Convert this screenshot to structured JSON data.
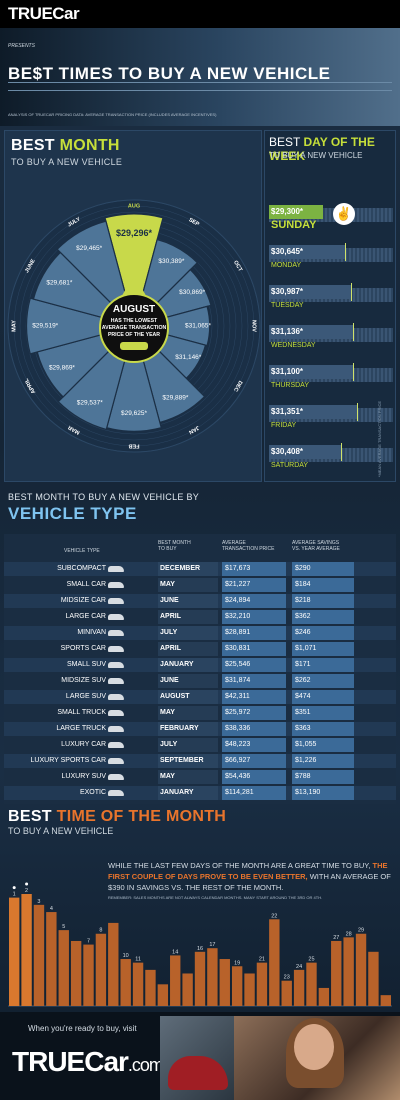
{
  "header": {
    "logo": "TRUECar",
    "presents": "PRESENTS",
    "title": "BE$T TIMES TO BUY A NEW VEHICLE",
    "subtitle": "ANALYSIS OF TRUECAR PRICING DATA: AVERAGE TRANSACTION PRICE (INCLUDES AVERAGE INCENTIVES)"
  },
  "best_month": {
    "title_prefix": "BEST ",
    "title_highlight": "MONTH",
    "subtitle": "TO BUY A NEW VEHICLE",
    "center_month": "AUGUST",
    "center_text_1": "HAS THE LOWEST",
    "center_text_2": "AVERAGE TRANSACTION",
    "center_text_3": "PRICE OF THE YEAR",
    "months": [
      {
        "name": "AUG",
        "price": "$29,296*",
        "value": 29296,
        "best": true
      },
      {
        "name": "SEP",
        "price": "$30,389*",
        "value": 30389
      },
      {
        "name": "OCT",
        "price": "$30,869*",
        "value": 30869
      },
      {
        "name": "NOV",
        "price": "$31,065*",
        "value": 31065
      },
      {
        "name": "DEC",
        "price": "$31,146*",
        "value": 31146
      },
      {
        "name": "JAN",
        "price": "$29,889*",
        "value": 29889
      },
      {
        "name": "FEB",
        "price": "$29,625*",
        "value": 29625
      },
      {
        "name": "MAR",
        "price": "$29,537*",
        "value": 29537
      },
      {
        "name": "APRIL",
        "price": "$29,869*",
        "value": 29869
      },
      {
        "name": "MAY",
        "price": "$29,519*",
        "value": 29519
      },
      {
        "name": "JUNE",
        "price": "$29,681*",
        "value": 29681
      },
      {
        "name": "JULY",
        "price": "$29,465*",
        "value": 29465
      }
    ]
  },
  "best_day": {
    "title_prefix": "BEST ",
    "title_highlight": "DAY OF THE WEEK",
    "subtitle": "TO BUY A NEW VEHICLE",
    "vertical_note": "*MEAN AVERAGE TRANSACTION PRICE",
    "days": [
      {
        "name": "SUNDAY",
        "price": "$29,300*",
        "value": 29300,
        "best": true
      },
      {
        "name": "MONDAY",
        "price": "$30,645*",
        "value": 30645
      },
      {
        "name": "TUESDAY",
        "price": "$30,987*",
        "value": 30987
      },
      {
        "name": "WEDNESDAY",
        "price": "$31,136*",
        "value": 31136
      },
      {
        "name": "THURSDAY",
        "price": "$31,100*",
        "value": 31100
      },
      {
        "name": "FRIDAY",
        "price": "$31,351*",
        "value": 31351
      },
      {
        "name": "SATURDAY",
        "price": "$30,408*",
        "value": 30408
      }
    ]
  },
  "vehicle_type": {
    "heading_1": "BEST MONTH TO BUY A NEW VEHICLE BY",
    "heading_2": "VEHICLE TYPE",
    "col_type": "VEHICLE TYPE",
    "col_month_1": "BEST MONTH",
    "col_month_2": "TO BUY",
    "col_price_1": "AVERAGE",
    "col_price_2": "TRANSACTION   PRICE",
    "col_save_1": "AVERAGE SAVINGS",
    "col_save_2": "VS. YEAR AVERAGE",
    "rows": [
      {
        "type": "SUBCOMPACT",
        "month": "DECEMBER",
        "price": "$17,673",
        "savings": "$290"
      },
      {
        "type": "SMALL CAR",
        "month": "MAY",
        "price": "$21,227",
        "savings": "$184"
      },
      {
        "type": "MIDSIZE CAR",
        "month": "JUNE",
        "price": "$24,894",
        "savings": "$218"
      },
      {
        "type": "LARGE CAR",
        "month": "APRIL",
        "price": "$32,210",
        "savings": "$362"
      },
      {
        "type": "MINIVAN",
        "month": "JULY",
        "price": "$28,891",
        "savings": "$246"
      },
      {
        "type": "SPORTS CAR",
        "month": "APRIL",
        "price": "$30,831",
        "savings": "$1,071"
      },
      {
        "type": "SMALL SUV",
        "month": "JANUARY",
        "price": "$25,546",
        "savings": "$171"
      },
      {
        "type": "MIDSIZE SUV",
        "month": "JUNE",
        "price": "$31,874",
        "savings": "$262"
      },
      {
        "type": "LARGE SUV",
        "month": "AUGUST",
        "price": "$42,311",
        "savings": "$474"
      },
      {
        "type": "SMALL TRUCK",
        "month": "MAY",
        "price": "$25,972",
        "savings": "$351"
      },
      {
        "type": "LARGE TRUCK",
        "month": "FEBRUARY",
        "price": "$38,336",
        "savings": "$363"
      },
      {
        "type": "LUXURY CAR",
        "month": "JULY",
        "price": "$48,223",
        "savings": "$1,055"
      },
      {
        "type": "LUXURY SPORTS CAR",
        "month": "SEPTEMBER",
        "price": "$66,927",
        "savings": "$1,226"
      },
      {
        "type": "LUXURY SUV",
        "month": "MAY",
        "price": "$54,436",
        "savings": "$788"
      },
      {
        "type": "EXOTIC",
        "month": "JANUARY",
        "price": "$114,281",
        "savings": "$13,190"
      }
    ]
  },
  "time_of_month": {
    "title_prefix": "BEST ",
    "title_highlight": "TIME OF THE MONTH",
    "subtitle": "TO BUY A NEW VEHICLE",
    "text_1": "WHILE THE LAST FEW DAYS OF THE MONTH ARE A GREAT TIME TO BUY, ",
    "text_highlight": "THE FIRST COUPLE OF DAYS PROVE TO BE EVEN BETTER,",
    "text_2": " WITH AN AVERAGE OF $390 IN SAVINGS VS. THE REST OF THE MONTH.",
    "note": "REMEMBER: SALES MONTHS ARE NOT ALWAYS CALENDAR MONTHS. MANY START AROUND THE 3RD OR 4TH.",
    "chart_data": {
      "type": "bar",
      "categories": [
        "1",
        "2",
        "3",
        "4",
        "5",
        "6",
        "7",
        "8",
        "9",
        "10",
        "11",
        "12",
        "13",
        "14",
        "15",
        "16",
        "17",
        "18",
        "19",
        "20",
        "21",
        "22",
        "23",
        "24",
        "25",
        "26",
        "27",
        "28",
        "29",
        "30",
        "31"
      ],
      "values": [
        1,
        2,
        3,
        4,
        5,
        6,
        7,
        8,
        9,
        10,
        11,
        12,
        13,
        14,
        15,
        16,
        17,
        18,
        19,
        20,
        21,
        22,
        23,
        24,
        25,
        26,
        27,
        28,
        29,
        30,
        31
      ],
      "labels": [
        "1",
        "2",
        "3",
        "4",
        "5",
        "",
        "7",
        "8",
        "",
        "10",
        "11",
        "",
        "",
        "14",
        "",
        "16",
        "17",
        "",
        "19",
        "",
        "21",
        "22",
        "23",
        "24",
        "25",
        "",
        "27",
        "28",
        "29",
        "",
        ""
      ],
      "heights": [
        30,
        31,
        28,
        26,
        21,
        18,
        17,
        20,
        23,
        13,
        12,
        10,
        6,
        14,
        9,
        15,
        16,
        13,
        11,
        9,
        12,
        24,
        7,
        10,
        12,
        5,
        18,
        19,
        20,
        15,
        3
      ],
      "highlight": [
        0,
        1
      ]
    }
  },
  "footer": {
    "ready": "When you're ready to buy, visit",
    "logo": "TRUECar",
    "com": ".com"
  }
}
